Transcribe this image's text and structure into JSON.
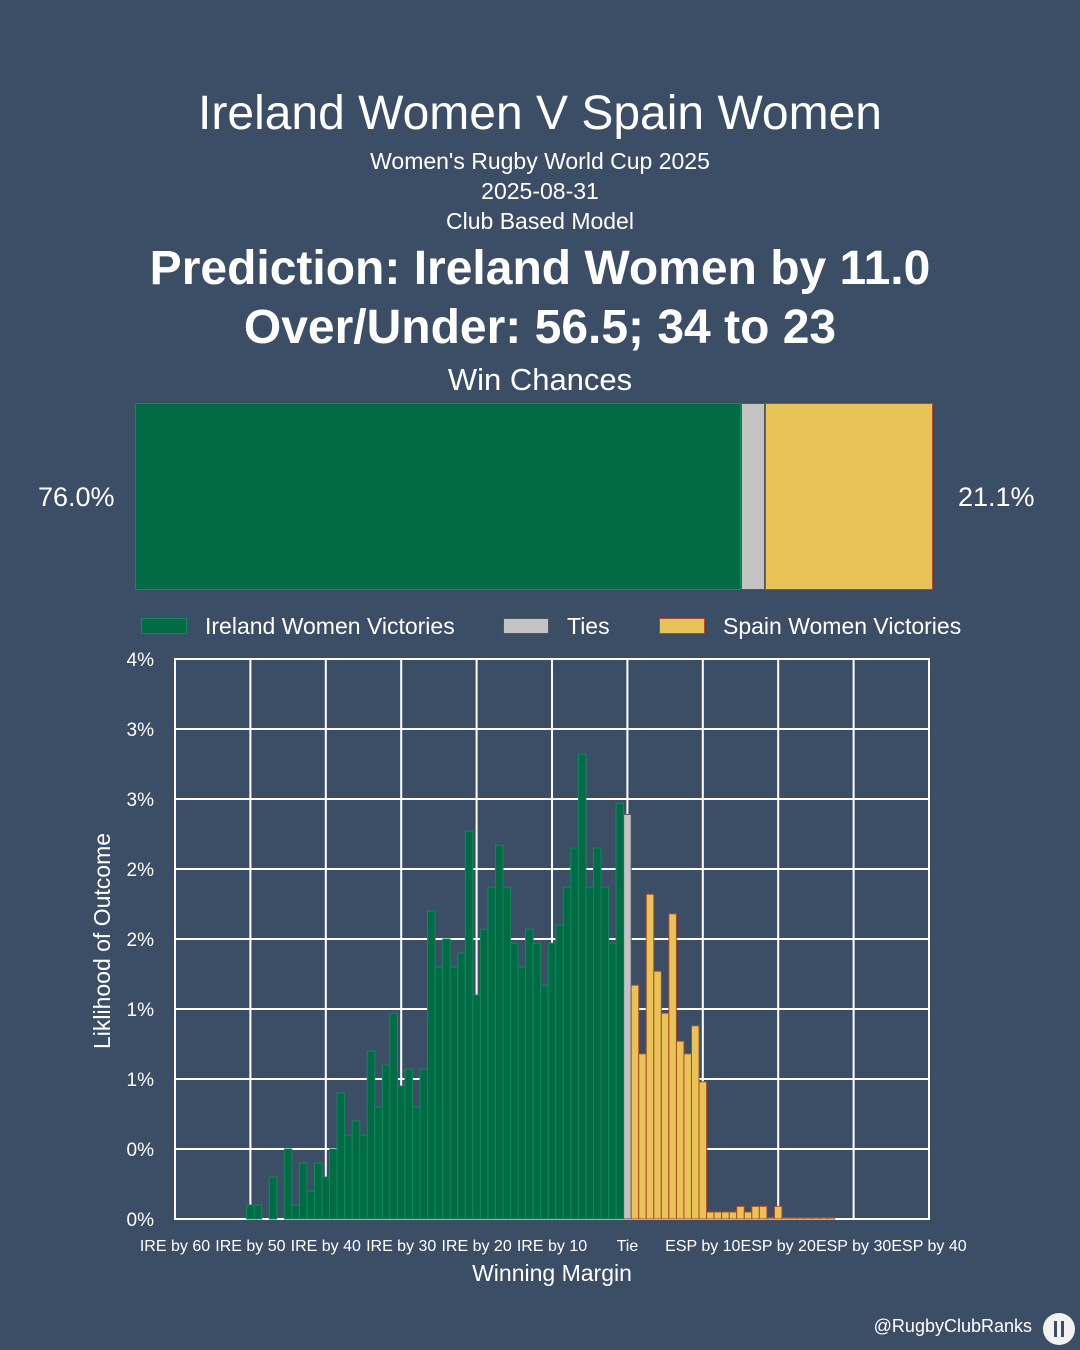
{
  "header": {
    "title": "Ireland Women V Spain Women",
    "competition": "Women's Rugby World Cup 2025",
    "date": "2025-08-31",
    "model": "Club Based Model",
    "prediction": "Prediction: Ireland Women by 11.0",
    "over_under": "Over/Under: 56.5; 34 to 23"
  },
  "win_chances": {
    "title": "Win Chances",
    "ireland": 0.76,
    "tie": 0.029,
    "spain": 0.211,
    "ireland_label": "76.0%",
    "spain_label": "21.1%"
  },
  "legend": {
    "ireland": "Ireland Women Victories",
    "ties": "Ties",
    "spain": "Spain Women Victories"
  },
  "colors": {
    "background": "#3b4e66",
    "ireland": "#006b45",
    "ireland_edge": "#0e8a5a",
    "tie": "#c3c3c3",
    "tie_edge": "#555555",
    "spain": "#e7c358",
    "spain_edge": "#b04a2a",
    "grid": "#ffffff"
  },
  "chart_data": {
    "type": "bar",
    "xlabel": "Winning Margin",
    "ylabel": "Liklihood of Outcome",
    "xlim": [
      -60,
      40
    ],
    "ylim": [
      0,
      0.04
    ],
    "x_ticks": [
      -60,
      -50,
      -40,
      -30,
      -20,
      -10,
      0,
      10,
      20,
      30,
      40
    ],
    "x_tick_labels": [
      "IRE by 60",
      "IRE by 50",
      "IRE by 40",
      "IRE by 30",
      "IRE by 20",
      "IRE by 10",
      "Tie",
      "ESP by 10",
      "ESP by 20",
      "ESP by 30",
      "ESP by 40"
    ],
    "y_ticks": [
      0,
      0.005,
      0.01,
      0.015,
      0.02,
      0.025,
      0.03,
      0.035,
      0.04
    ],
    "y_tick_labels": [
      "0%",
      "0%",
      "1%",
      "1%",
      "2%",
      "2%",
      "3%",
      "3%",
      "4%"
    ],
    "grid": true,
    "series": [
      {
        "name": "Ireland Women Victories",
        "x": [
          -50,
          -49,
          -47,
          -45,
          -44,
          -43,
          -42,
          -41,
          -40,
          -39,
          -38,
          -37,
          -36,
          -35,
          -34,
          -33,
          -32,
          -31,
          -30,
          -29,
          -28,
          -27,
          -26,
          -25,
          -24,
          -23,
          -22,
          -21,
          -20,
          -19,
          -18,
          -17,
          -16,
          -15,
          -14,
          -13,
          -12,
          -11,
          -10,
          -9,
          -8,
          -7,
          -6,
          -5,
          -4,
          -3,
          -2,
          -1
        ],
        "values": [
          0.001,
          0.001,
          0.003,
          0.005,
          0.001,
          0.004,
          0.002,
          0.004,
          0.003,
          0.005,
          0.009,
          0.006,
          0.007,
          0.006,
          0.012,
          0.008,
          0.011,
          0.0147,
          0.0095,
          0.0107,
          0.008,
          0.0107,
          0.022,
          0.018,
          0.02,
          0.018,
          0.019,
          0.0277,
          0.016,
          0.0207,
          0.0237,
          0.0267,
          0.0237,
          0.0197,
          0.018,
          0.0207,
          0.0197,
          0.0167,
          0.0197,
          0.021,
          0.0237,
          0.0265,
          0.0332,
          0.0237,
          0.0265,
          0.0237,
          0.0197,
          0.0297
        ]
      },
      {
        "name": "Ties",
        "x": [
          0
        ],
        "values": [
          0.0289
        ]
      },
      {
        "name": "Spain Women Victories",
        "x": [
          1,
          2,
          3,
          4,
          5,
          6,
          7,
          8,
          9,
          10,
          11,
          12,
          13,
          14,
          15,
          16,
          17,
          18,
          19,
          20,
          21,
          22,
          23,
          24,
          25,
          26,
          27
        ],
        "values": [
          0.0167,
          0.0118,
          0.0232,
          0.0177,
          0.0147,
          0.0218,
          0.0127,
          0.0118,
          0.0138,
          0.0098,
          0.0005,
          0.0005,
          0.0005,
          0.0005,
          0.0009,
          0.0005,
          0.0009,
          0.0009,
          0.0001,
          0.0009,
          0.0001,
          0.0001,
          0.0001,
          0.0001,
          0.0001,
          0.0001,
          0.0001
        ]
      }
    ]
  },
  "footer": {
    "handle": "@RugbyClubRanks",
    "logo": "rugby-club-ranks-logo"
  }
}
